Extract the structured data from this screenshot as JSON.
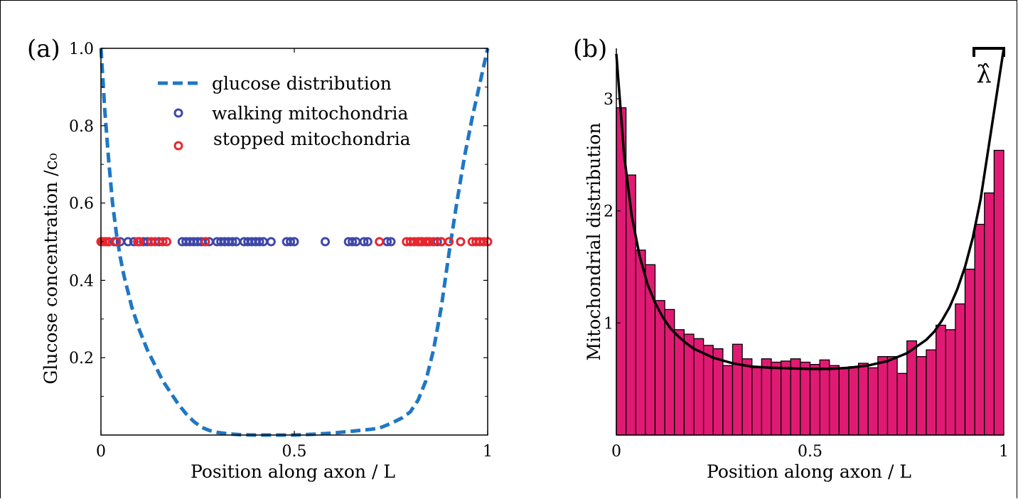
{
  "panel_a": {
    "label": "(a)"
  },
  "panel_b": {
    "label": "(b)",
    "annotation": "λ̂"
  },
  "colors": {
    "glucose": "#1f77c4",
    "walking": "#3f48a8",
    "stopped": "#e8262f",
    "hist_fill": "#e01a73",
    "hist_edge": "#000000",
    "fit": "#000000"
  },
  "chart_data": [
    {
      "type": "line",
      "panel": "a",
      "xlabel": "Position along axon / L",
      "ylabel": "Glucose concentration /c₀",
      "xlim": [
        0,
        1
      ],
      "ylim": [
        0,
        1
      ],
      "xticks": [
        0,
        0.5,
        1
      ],
      "xtick_labels": [
        "0",
        "0.5",
        "1"
      ],
      "yticks": [
        0.2,
        0.4,
        0.6,
        0.8,
        1.0
      ],
      "ytick_labels": [
        "0.2",
        "0.4",
        "0.6",
        "0.8",
        "1.0"
      ],
      "legend_position": "top-center",
      "series": [
        {
          "name": "glucose distribution",
          "style": "dashed",
          "x": [
            0,
            0.01,
            0.02,
            0.03,
            0.04,
            0.05,
            0.06,
            0.07,
            0.08,
            0.09,
            0.1,
            0.12,
            0.14,
            0.16,
            0.18,
            0.2,
            0.22,
            0.24,
            0.26,
            0.28,
            0.3,
            0.33,
            0.36,
            0.4,
            0.45,
            0.5,
            0.55,
            0.6,
            0.65,
            0.7,
            0.72,
            0.75,
            0.78,
            0.8,
            0.82,
            0.84,
            0.86,
            0.88,
            0.9,
            0.92,
            0.94,
            0.96,
            0.98,
            1.0
          ],
          "y": [
            1.0,
            0.84,
            0.71,
            0.6,
            0.52,
            0.46,
            0.41,
            0.37,
            0.33,
            0.3,
            0.27,
            0.22,
            0.18,
            0.14,
            0.11,
            0.08,
            0.055,
            0.035,
            0.02,
            0.012,
            0.007,
            0.003,
            0.001,
            0.0,
            0.0,
            0.0,
            0.002,
            0.005,
            0.01,
            0.015,
            0.018,
            0.03,
            0.045,
            0.06,
            0.09,
            0.14,
            0.22,
            0.33,
            0.47,
            0.6,
            0.72,
            0.82,
            0.91,
            1.0
          ]
        },
        {
          "name": "walking mitochondria",
          "style": "markers",
          "y_const": 0.5,
          "x": [
            0.02,
            0.035,
            0.05,
            0.07,
            0.085,
            0.11,
            0.12,
            0.15,
            0.21,
            0.22,
            0.23,
            0.24,
            0.25,
            0.26,
            0.27,
            0.28,
            0.3,
            0.31,
            0.32,
            0.33,
            0.34,
            0.35,
            0.37,
            0.38,
            0.39,
            0.4,
            0.41,
            0.42,
            0.44,
            0.48,
            0.49,
            0.5,
            0.58,
            0.64,
            0.65,
            0.66,
            0.68,
            0.69,
            0.74,
            0.75,
            0.83,
            0.87,
            0.88
          ]
        },
        {
          "name": "stopped mitochondria",
          "style": "markers",
          "y_const": 0.5,
          "x": [
            0.0,
            0.005,
            0.012,
            0.02,
            0.04,
            0.095,
            0.1,
            0.13,
            0.14,
            0.16,
            0.17,
            0.27,
            0.72,
            0.79,
            0.8,
            0.81,
            0.82,
            0.825,
            0.83,
            0.84,
            0.845,
            0.85,
            0.86,
            0.88,
            0.9,
            0.93,
            0.96,
            0.97,
            0.98,
            0.99,
            1.0
          ]
        }
      ]
    },
    {
      "type": "bar",
      "panel": "b",
      "xlabel": "Position along axon / L",
      "ylabel": "Mitochondrial distribution",
      "xlim": [
        0,
        1
      ],
      "ylim": [
        0,
        3.45
      ],
      "xticks": [
        0,
        0.5,
        1
      ],
      "xtick_labels": [
        "0",
        "0.5",
        "1"
      ],
      "yticks": [
        1,
        2,
        3
      ],
      "ytick_labels": [
        "1",
        "2",
        "3"
      ],
      "bin_width": 0.025,
      "histogram_heights": [
        2.92,
        2.32,
        1.65,
        1.52,
        1.2,
        1.12,
        0.94,
        0.9,
        0.86,
        0.8,
        0.77,
        0.62,
        0.81,
        0.68,
        0.6,
        0.68,
        0.65,
        0.66,
        0.68,
        0.65,
        0.63,
        0.67,
        0.62,
        0.6,
        0.61,
        0.64,
        0.6,
        0.7,
        0.7,
        0.55,
        0.84,
        0.7,
        0.76,
        0.98,
        0.94,
        1.17,
        1.48,
        1.88,
        2.16,
        2.54
      ],
      "fit_curve": {
        "x": [
          0,
          0.02,
          0.04,
          0.06,
          0.08,
          0.1,
          0.12,
          0.14,
          0.16,
          0.18,
          0.2,
          0.25,
          0.3,
          0.35,
          0.4,
          0.45,
          0.5,
          0.55,
          0.6,
          0.65,
          0.7,
          0.75,
          0.8,
          0.82,
          0.84,
          0.86,
          0.88,
          0.9,
          0.92,
          0.94,
          0.96,
          0.98,
          1.0
        ],
        "y": [
          3.4,
          2.5,
          1.95,
          1.6,
          1.35,
          1.18,
          1.05,
          0.95,
          0.88,
          0.82,
          0.77,
          0.69,
          0.64,
          0.61,
          0.6,
          0.595,
          0.59,
          0.59,
          0.6,
          0.62,
          0.66,
          0.73,
          0.85,
          0.92,
          1.02,
          1.14,
          1.3,
          1.5,
          1.76,
          2.1,
          2.55,
          3.0,
          3.45
        ]
      }
    }
  ]
}
